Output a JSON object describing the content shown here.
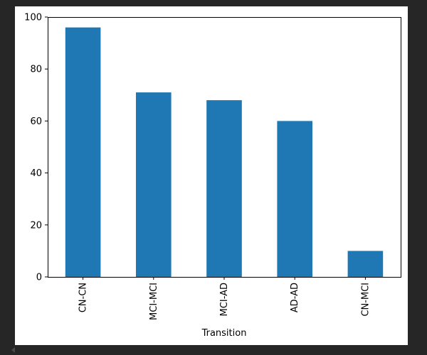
{
  "chart_data": {
    "type": "bar",
    "categories": [
      "CN-CN",
      "MCI-MCI",
      "MCI-AD",
      "AD-AD",
      "CN-MCI"
    ],
    "values": [
      96,
      71,
      68,
      60,
      10
    ],
    "title": "",
    "xlabel": "Transition",
    "ylabel": "",
    "ylim": [
      0,
      100
    ],
    "yticks": [
      0,
      20,
      40,
      60,
      80,
      100
    ],
    "grid": false,
    "legend": "none",
    "bar_color": "#1f77b4"
  },
  "colors": {
    "background": "#262626",
    "figure": "#ffffff",
    "bar": "#1f77b4"
  }
}
